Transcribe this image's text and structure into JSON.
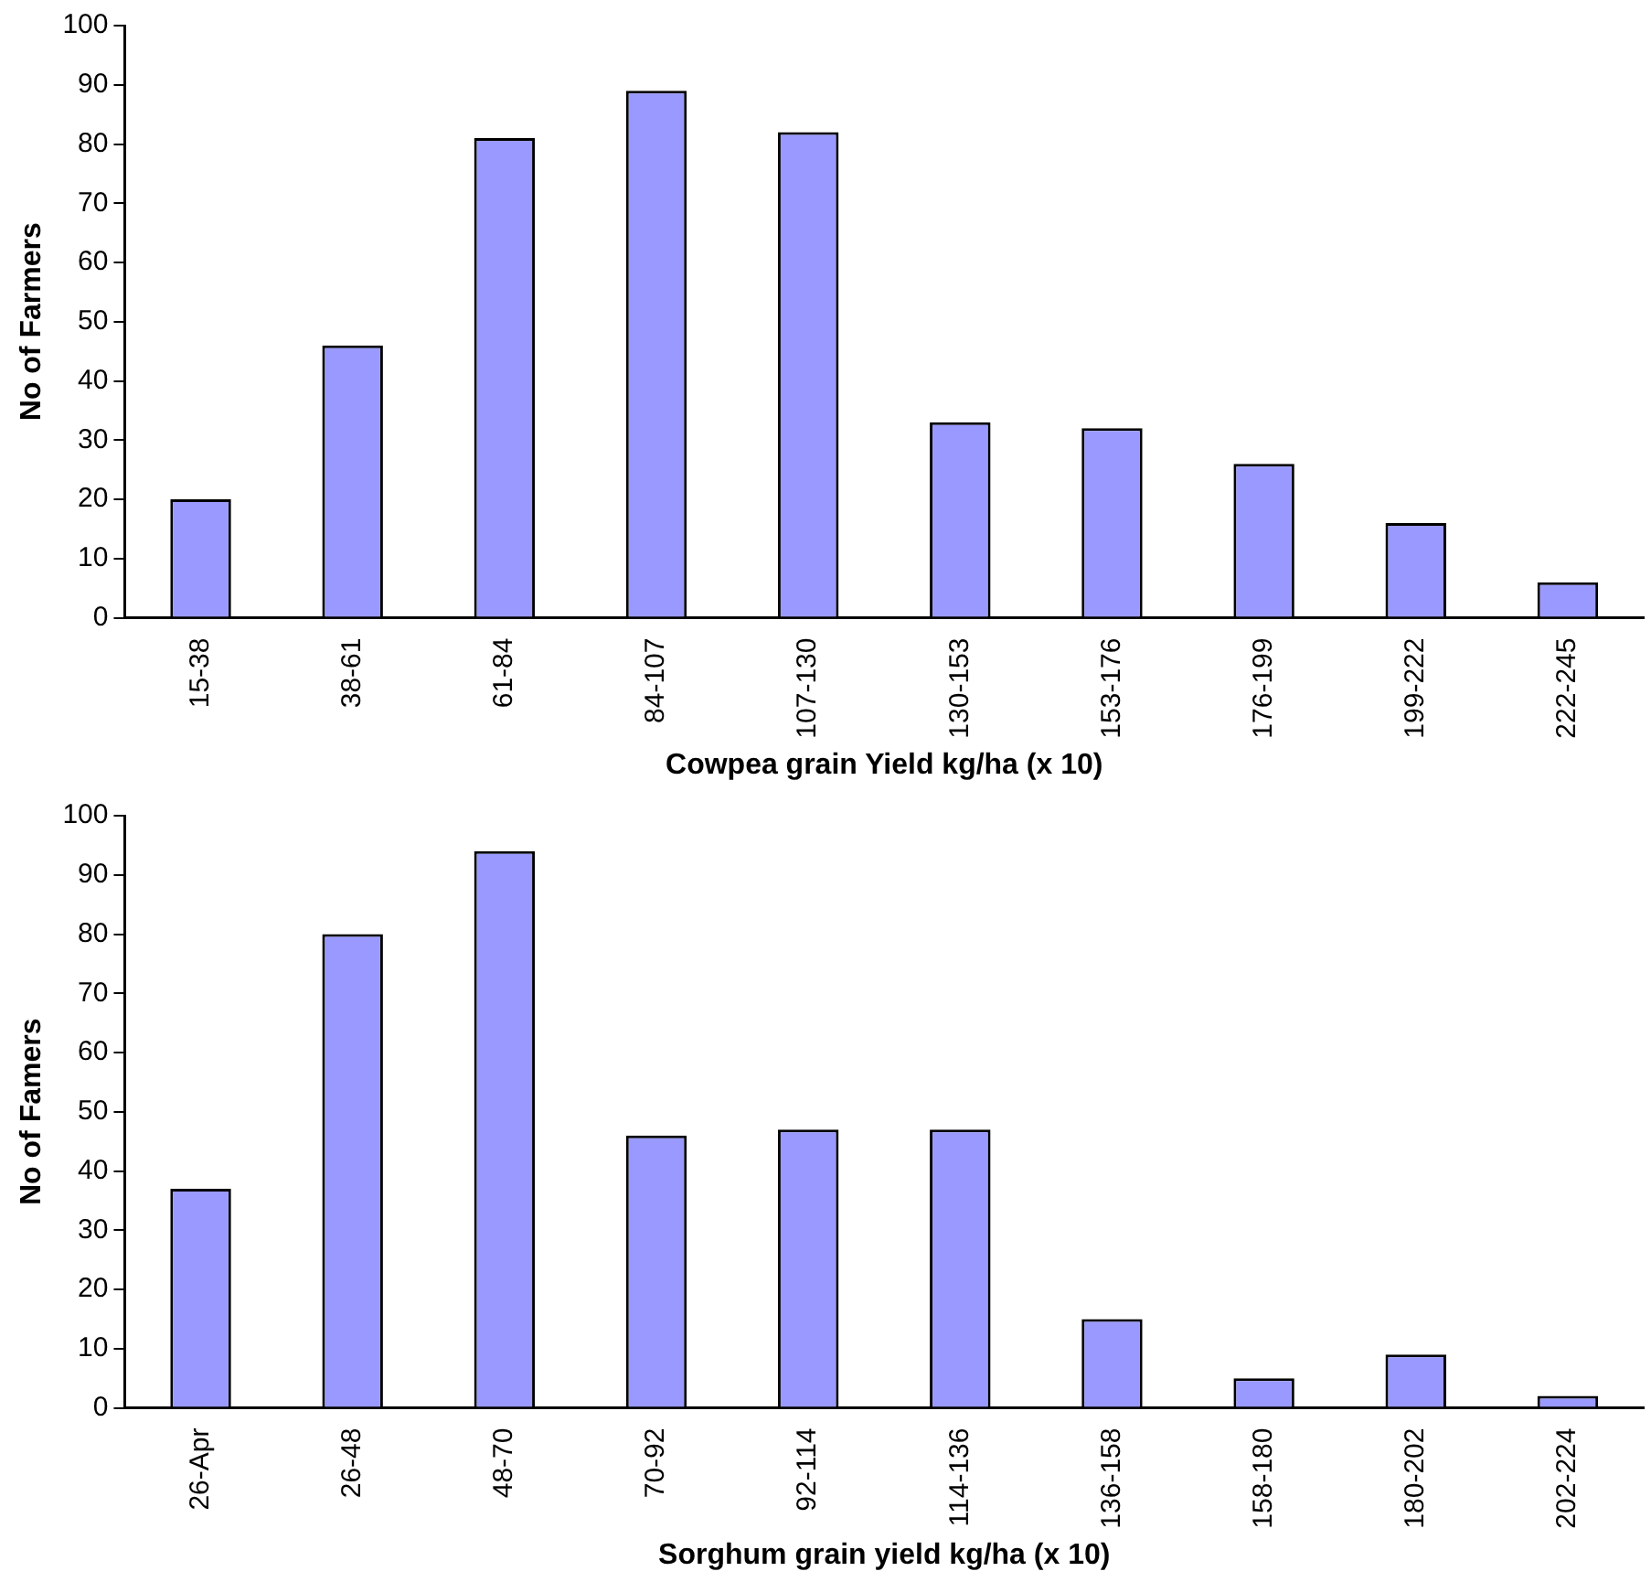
{
  "chart_data": [
    {
      "type": "bar",
      "xlabel": "Cowpea grain Yield kg/ha (x 10)",
      "ylabel": "No of Farmers",
      "categories": [
        "15-38",
        "38-61",
        "61-84",
        "84-107",
        "107-130",
        "130-153",
        "153-176",
        "176-199",
        "199-222",
        "222-245"
      ],
      "values": [
        20,
        46,
        81,
        89,
        82,
        33,
        32,
        26,
        16,
        6
      ],
      "color": "#9999ff",
      "ylim": [
        0,
        100
      ],
      "yticks": [
        0,
        10,
        20,
        30,
        40,
        50,
        60,
        70,
        80,
        90,
        100
      ],
      "grid": false,
      "legend": false
    },
    {
      "type": "bar",
      "xlabel": "Sorghum grain yield kg/ha (x 10)",
      "ylabel": "No of Famers",
      "categories": [
        "26-Apr",
        "26-48",
        "48-70",
        "70-92",
        "92-114",
        "114-136",
        "136-158",
        "158-180",
        "180-202",
        "202-224"
      ],
      "values": [
        37,
        80,
        94,
        46,
        47,
        47,
        15,
        5,
        9,
        2
      ],
      "color": "#9999ff",
      "ylim": [
        0,
        100
      ],
      "yticks": [
        0,
        10,
        20,
        30,
        40,
        50,
        60,
        70,
        80,
        90,
        100
      ],
      "grid": false,
      "legend": false
    }
  ]
}
